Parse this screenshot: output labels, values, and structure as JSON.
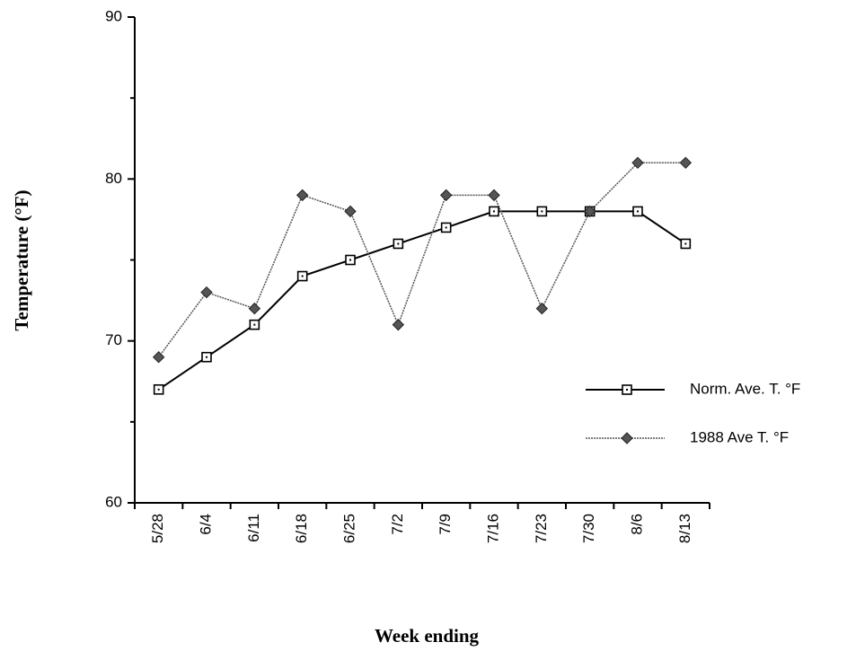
{
  "chart_data": {
    "type": "line",
    "x_label": "Week ending",
    "y_label": "Temperature (°F)",
    "categories": [
      "5/28",
      "6/4",
      "6/11",
      "6/18",
      "6/25",
      "7/2",
      "7/9",
      "7/16",
      "7/23",
      "7/30",
      "8/6",
      "8/13"
    ],
    "series": [
      {
        "name": "Norm. Ave. T. °F",
        "color": "#000000",
        "values": [
          67,
          69,
          71,
          74,
          75,
          76,
          77,
          78,
          78,
          78,
          78,
          76
        ]
      },
      {
        "name": "1988 Ave T. °F",
        "color": "#555555",
        "values": [
          69,
          73,
          72,
          79,
          78,
          71,
          79,
          79,
          72,
          78,
          81,
          81
        ]
      }
    ],
    "ylim": [
      60,
      90
    ],
    "yticks": [
      60,
      70,
      80,
      90
    ],
    "grid": false,
    "legend": "right"
  }
}
